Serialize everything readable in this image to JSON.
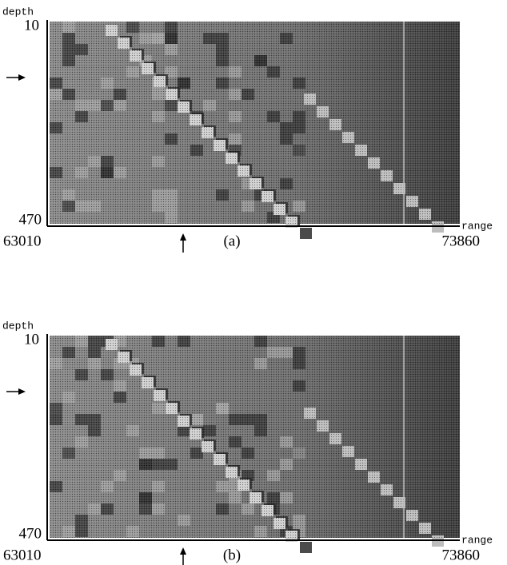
{
  "panels": [
    {
      "depth_label": "depth",
      "range_label": "range",
      "depth_ticks": [
        "10",
        "470"
      ],
      "range_ticks": [
        "63010",
        "73860"
      ],
      "caption": "(a)"
    },
    {
      "depth_label": "depth",
      "range_label": "range",
      "depth_ticks": [
        "10",
        "470"
      ],
      "range_ticks": [
        "63010",
        "73860"
      ],
      "caption": "(b)"
    }
  ]
}
